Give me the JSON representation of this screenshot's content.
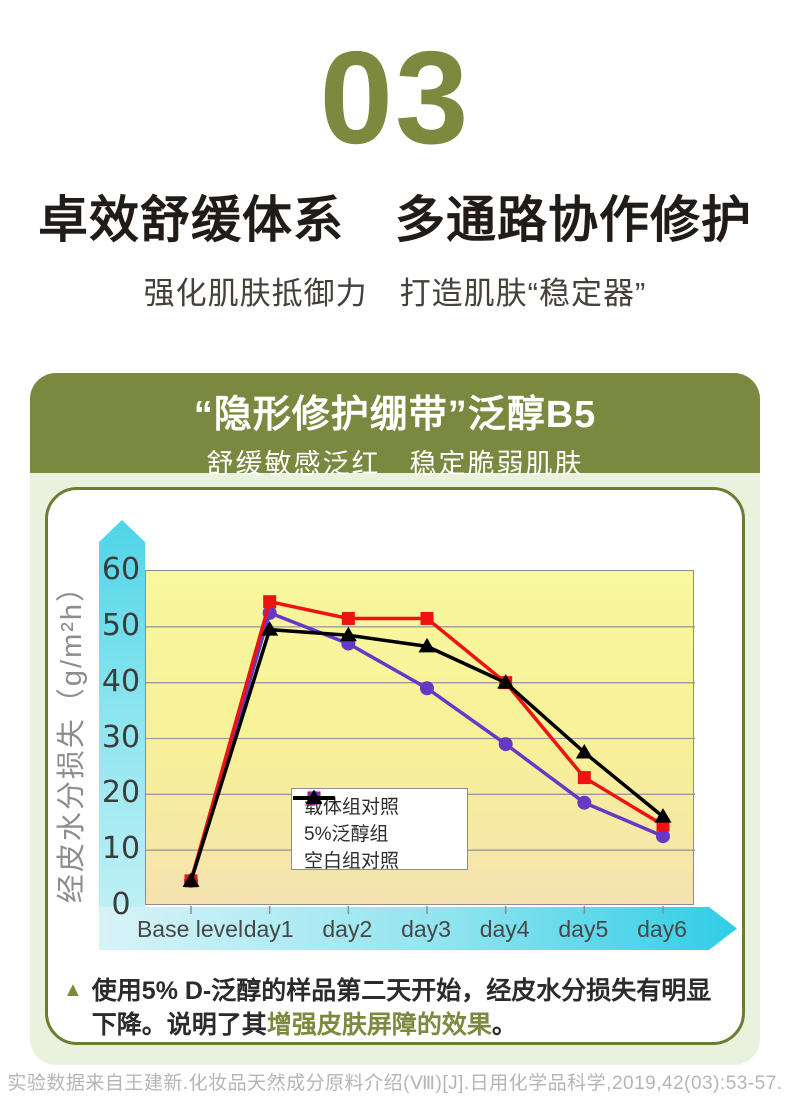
{
  "header": {
    "number": "03",
    "title": "卓效舒缓体系　多通路协作修护",
    "subtitle": "强化肌肤抵御力　打造肌肤“稳定器”"
  },
  "banner": {
    "title": "“隐形修护绷带”泛醇B5",
    "subtitle": "舒缓敏感泛红　稳定脆弱肌肤"
  },
  "chart_data": {
    "type": "line",
    "categories": [
      "Base level",
      "day1",
      "day2",
      "day3",
      "day4",
      "day5",
      "day6"
    ],
    "series": [
      {
        "name": "载体组对照",
        "color": "#ee1212",
        "marker": "square",
        "values": [
          4.5,
          54.5,
          51.5,
          51.5,
          40,
          23,
          14.5
        ]
      },
      {
        "name": "5%泛醇组",
        "color": "#6638c6",
        "marker": "circle",
        "values": [
          4.5,
          52.5,
          47,
          39,
          29,
          18.5,
          12.5
        ]
      },
      {
        "name": "空白组对照",
        "color": "#000000",
        "marker": "triangle",
        "values": [
          4.5,
          49.5,
          48.5,
          46.5,
          40,
          27.5,
          16
        ]
      }
    ],
    "draw_order": [
      1,
      0,
      2
    ],
    "title": "",
    "xlabel": "",
    "ylabel": "经皮水分损失（g/m²h）",
    "ylim": [
      0,
      60
    ],
    "ytick_step": 10,
    "grid": true,
    "legend_position": "inside-center-left"
  },
  "note": {
    "bullet": "▲",
    "prefix": "使用5% D-泛醇的样品第二天开始，经皮水分损失有明显下降。说明了其",
    "highlight": "增强皮肤屏障的效果",
    "suffix": "。"
  },
  "footer": {
    "citation": "实验数据来自王建新.化妆品天然成分原料介绍(Ⅷ)[J].日用化学品科学,2019,42(03):53-57."
  },
  "colors": {
    "accent_olive": "#7c893e",
    "panel_green": "#eaf2de",
    "plot_yellow": "#f8f89e",
    "axis_cyan": "#2fcde6"
  }
}
